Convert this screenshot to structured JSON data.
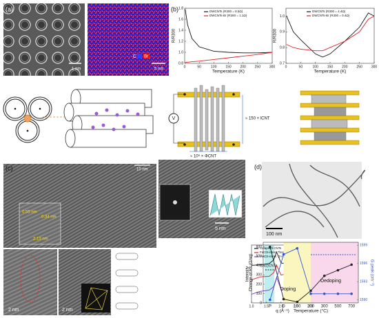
{
  "panels": {
    "a": {
      "label": "(a)",
      "scale_tem": "1 nm",
      "scale_map": "5 nm",
      "map_legend": [
        "C",
        "Br"
      ]
    },
    "b": {
      "label": "(b)",
      "plot_left": {
        "ylabel": "R/R300",
        "xlabel": "Temperature (K)",
        "xlim": [
          0,
          300
        ],
        "xticks": [
          0,
          50,
          100,
          150,
          200,
          250,
          300
        ],
        "ylim": [
          0.8,
          1.8
        ],
        "yticks": [
          {
            "value": 0.8,
            "label": "0.8"
          },
          {
            "value": 1,
            "label": "1.0"
          },
          {
            "value": 1.2,
            "label": "1.2"
          },
          {
            "value": 1.4,
            "label": "1.4"
          },
          {
            "value": 1.6,
            "label": "1.6"
          },
          {
            "value": 1.8,
            "label": "1.8"
          }
        ],
        "series": [
          {
            "name": "DWCNTs (R300 = 8.5Ω)",
            "color": "#111111",
            "x": [
              2,
              10,
              25,
              50,
              100,
              150,
              200,
              250,
              300
            ],
            "values": [
              1.78,
              1.5,
              1.25,
              1.1,
              1.02,
              1.0,
              0.99,
              0.99,
              1.0
            ]
          },
          {
            "name": "DWCNTs-Br (R300 = 1.1Ω)",
            "color": "#e02020",
            "x": [
              2,
              10,
              25,
              50,
              100,
              150,
              200,
              250,
              300
            ],
            "values": [
              0.82,
              0.82,
              0.83,
              0.84,
              0.87,
              0.9,
              0.93,
              0.96,
              1.0
            ]
          }
        ]
      },
      "plot_right": {
        "ylabel": "R/R300",
        "xlabel": "Temperature (K)",
        "xlim": [
          0,
          300
        ],
        "xticks": [
          0,
          50,
          100,
          150,
          200,
          250,
          300
        ],
        "ylim": [
          0.7,
          1.05
        ],
        "yticks": [
          {
            "value": 0.7,
            "label": "0.7"
          },
          {
            "value": 0.8,
            "label": "0.8"
          },
          {
            "value": 0.9,
            "label": "0.9"
          },
          {
            "value": 1,
            "label": "1.0"
          }
        ],
        "series": [
          {
            "name": "DWCNTs (R300 = 4.4Ω)",
            "color": "#111111",
            "x": [
              2,
              25,
              50,
              100,
              125,
              150,
              200,
              250,
              280,
              300
            ],
            "values": [
              1.0,
              0.9,
              0.85,
              0.76,
              0.74,
              0.76,
              0.84,
              0.93,
              1.02,
              1.0
            ]
          },
          {
            "name": "DWCNTs-Br (R300 = 0.4Ω)",
            "color": "#e02020",
            "x": [
              2,
              25,
              50,
              100,
              125,
              150,
              200,
              250,
              280,
              300
            ],
            "values": [
              0.82,
              0.8,
              0.79,
              0.78,
              0.78,
              0.8,
              0.84,
              0.9,
              0.98,
              1.0
            ]
          }
        ]
      },
      "circuit": {
        "meter": "V",
        "length": "≈ 150 × lCNT",
        "width": "≈ 10⁶ × ΦCNT"
      }
    },
    "c": {
      "label": "(c)",
      "scale_top": "10 nm",
      "scale_fft": "5 nm",
      "scale_bl": "2 nm",
      "scale_bm": "2 nm",
      "spacings": [
        "0.55 nm",
        "0.34 nm",
        "2.13 nm"
      ],
      "plot": {
        "ylabel": "Intensity",
        "xlabel": "q (Å⁻¹)",
        "xlim": [
          1,
          3.1
        ],
        "xticks": [
          {
            "value": 1,
            "label": "1.0"
          },
          1.5,
          {
            "value": 2,
            "label": "2.0"
          },
          2.5,
          {
            "value": 3,
            "label": "3.0"
          }
        ],
        "ylim": [
          0,
          10
        ],
        "annotations": [
          "(002)CNTs",
          "(00l)FeCl3 + Fe"
        ],
        "series": [
          {
            "name": "collapsed CNTs",
            "color": "#111111",
            "x": [
              1.0,
              1.3,
              1.6,
              1.75,
              1.85,
              2.0,
              2.3,
              2.6,
              2.9,
              3.1
            ],
            "values": [
              6.5,
              6.6,
              6.8,
              7.4,
              8.8,
              6.9,
              6.6,
              6.5,
              6.4,
              6.4
            ]
          },
          {
            "name": "FeCl3-interc \"fresh\"",
            "color": "#e02020",
            "x": [
              1.0,
              1.3,
              1.6,
              1.75,
              1.85,
              2.0,
              2.3,
              2.6,
              2.9,
              3.1
            ],
            "values": [
              4.0,
              4.5,
              4.6,
              5.2,
              6.5,
              4.8,
              5.2,
              4.4,
              5.0,
              4.2
            ]
          },
          {
            "name": "FeCl3-interc \"2-months\"",
            "color": "#8a2be2",
            "x": [
              1.0,
              1.3,
              1.6,
              1.75,
              1.85,
              2.0,
              2.3,
              2.6,
              2.9,
              3.1
            ],
            "values": [
              1.5,
              2.0,
              2.2,
              2.8,
              4.4,
              2.3,
              2.9,
              2.0,
              2.7,
              1.8
            ]
          }
        ]
      }
    },
    "d": {
      "label": "(d)",
      "scale": "100 nm",
      "plot": {
        "ylabel": "Change of Rs (Ω/sq)",
        "y2label": "G peak (cm⁻¹)",
        "xlabel": "Temperature (°C)",
        "categories": [
          "P",
          "D",
          "100",
          "200",
          "300",
          "500",
          "700"
        ],
        "ylim": [
          0,
          650
        ],
        "yticks": [
          0,
          100,
          200,
          300,
          400,
          500,
          600
        ],
        "y2lim": [
          1589.5,
          1599.5
        ],
        "y2ticks": [
          1590,
          1593,
          1596,
          1599
        ],
        "annotations": [
          "Doping",
          "Dedoping"
        ],
        "series": [
          {
            "color": "#222222",
            "values": [
              600,
              40,
              10,
              130,
              290,
              350,
              410
            ]
          },
          {
            "color": "#3355cc",
            "axis": "y2",
            "values": [
              1590,
              1597.5,
              1598.5,
              1591,
              1591,
              1591,
              1591
            ]
          }
        ]
      }
    }
  }
}
